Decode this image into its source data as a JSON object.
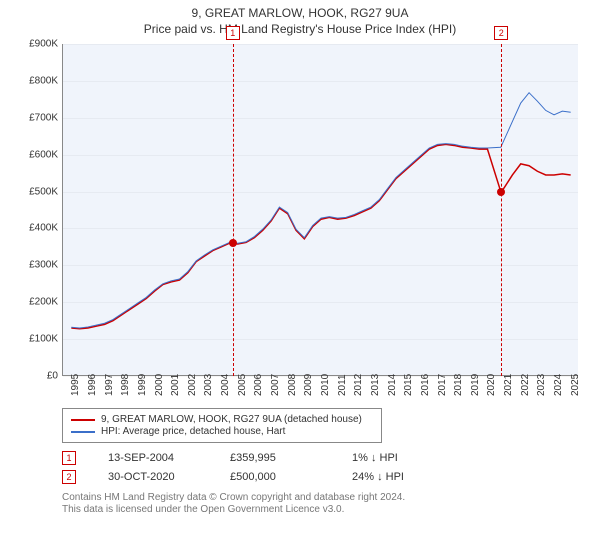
{
  "title": "9, GREAT MARLOW, HOOK, RG27 9UA",
  "subtitle": "Price paid vs. HM Land Registry's House Price Index (HPI)",
  "chart": {
    "type": "line",
    "plot_bg": "#f0f4fb",
    "ylim": [
      0,
      900000
    ],
    "ytick_step": 100000,
    "y_labels": [
      "£0",
      "£100K",
      "£200K",
      "£300K",
      "£400K",
      "£500K",
      "£600K",
      "£700K",
      "£800K",
      "£900K"
    ],
    "xlim": [
      1994.5,
      2025.5
    ],
    "x_labels": [
      "1995",
      "1996",
      "1997",
      "1998",
      "1999",
      "2000",
      "2001",
      "2002",
      "2003",
      "2004",
      "2005",
      "2006",
      "2007",
      "2008",
      "2009",
      "2010",
      "2011",
      "2012",
      "2013",
      "2014",
      "2015",
      "2016",
      "2017",
      "2018",
      "2019",
      "2020",
      "2021",
      "2022",
      "2023",
      "2024",
      "2025"
    ],
    "series": [
      {
        "name": "9, GREAT MARLOW, HOOK, RG27 9UA (detached house)",
        "color": "#cc0000",
        "line_width": 1.5,
        "data": [
          [
            1995,
            130000
          ],
          [
            1995.5,
            128000
          ],
          [
            1996,
            130000
          ],
          [
            1996.5,
            135000
          ],
          [
            1997,
            140000
          ],
          [
            1997.5,
            150000
          ],
          [
            1998,
            165000
          ],
          [
            1998.5,
            180000
          ],
          [
            1999,
            195000
          ],
          [
            1999.5,
            210000
          ],
          [
            2000,
            230000
          ],
          [
            2000.5,
            248000
          ],
          [
            2001,
            255000
          ],
          [
            2001.5,
            260000
          ],
          [
            2002,
            280000
          ],
          [
            2002.5,
            310000
          ],
          [
            2003,
            325000
          ],
          [
            2003.5,
            340000
          ],
          [
            2004,
            350000
          ],
          [
            2004.5,
            360000
          ],
          [
            2005,
            358000
          ],
          [
            2005.5,
            362000
          ],
          [
            2006,
            375000
          ],
          [
            2006.5,
            395000
          ],
          [
            2007,
            420000
          ],
          [
            2007.5,
            455000
          ],
          [
            2008,
            440000
          ],
          [
            2008.5,
            395000
          ],
          [
            2009,
            372000
          ],
          [
            2009.5,
            405000
          ],
          [
            2010,
            425000
          ],
          [
            2010.5,
            430000
          ],
          [
            2011,
            425000
          ],
          [
            2011.5,
            428000
          ],
          [
            2012,
            435000
          ],
          [
            2012.5,
            445000
          ],
          [
            2013,
            455000
          ],
          [
            2013.5,
            475000
          ],
          [
            2014,
            505000
          ],
          [
            2014.5,
            535000
          ],
          [
            2015,
            555000
          ],
          [
            2015.5,
            575000
          ],
          [
            2016,
            595000
          ],
          [
            2016.5,
            615000
          ],
          [
            2017,
            625000
          ],
          [
            2017.5,
            628000
          ],
          [
            2018,
            625000
          ],
          [
            2018.5,
            620000
          ],
          [
            2019,
            618000
          ],
          [
            2019.5,
            615000
          ],
          [
            2020,
            615000
          ],
          [
            2020.8,
            500000
          ],
          [
            2021,
            510000
          ],
          [
            2021.5,
            545000
          ],
          [
            2022,
            575000
          ],
          [
            2022.5,
            570000
          ],
          [
            2023,
            555000
          ],
          [
            2023.5,
            545000
          ],
          [
            2024,
            545000
          ],
          [
            2024.5,
            548000
          ],
          [
            2025,
            545000
          ]
        ]
      },
      {
        "name": "HPI: Average price, detached house, Hart",
        "color": "#3b6fc9",
        "line_width": 1,
        "data": [
          [
            1995,
            132000
          ],
          [
            1995.5,
            130000
          ],
          [
            1996,
            133000
          ],
          [
            1996.5,
            138000
          ],
          [
            1997,
            143000
          ],
          [
            1997.5,
            153000
          ],
          [
            1998,
            168000
          ],
          [
            1998.5,
            183000
          ],
          [
            1999,
            198000
          ],
          [
            1999.5,
            213000
          ],
          [
            2000,
            233000
          ],
          [
            2000.5,
            250000
          ],
          [
            2001,
            258000
          ],
          [
            2001.5,
            263000
          ],
          [
            2002,
            283000
          ],
          [
            2002.5,
            312000
          ],
          [
            2003,
            328000
          ],
          [
            2003.5,
            342000
          ],
          [
            2004,
            352000
          ],
          [
            2004.5,
            362000
          ],
          [
            2005,
            360000
          ],
          [
            2005.5,
            364000
          ],
          [
            2006,
            378000
          ],
          [
            2006.5,
            398000
          ],
          [
            2007,
            423000
          ],
          [
            2007.5,
            458000
          ],
          [
            2008,
            443000
          ],
          [
            2008.5,
            398000
          ],
          [
            2009,
            375000
          ],
          [
            2009.5,
            408000
          ],
          [
            2010,
            428000
          ],
          [
            2010.5,
            432000
          ],
          [
            2011,
            428000
          ],
          [
            2011.5,
            430000
          ],
          [
            2012,
            438000
          ],
          [
            2012.5,
            448000
          ],
          [
            2013,
            458000
          ],
          [
            2013.5,
            478000
          ],
          [
            2014,
            508000
          ],
          [
            2014.5,
            538000
          ],
          [
            2015,
            558000
          ],
          [
            2015.5,
            578000
          ],
          [
            2016,
            598000
          ],
          [
            2016.5,
            618000
          ],
          [
            2017,
            628000
          ],
          [
            2017.5,
            630000
          ],
          [
            2018,
            628000
          ],
          [
            2018.5,
            623000
          ],
          [
            2019,
            620000
          ],
          [
            2019.5,
            618000
          ],
          [
            2020,
            618000
          ],
          [
            2020.8,
            620000
          ],
          [
            2021,
            640000
          ],
          [
            2021.5,
            690000
          ],
          [
            2022,
            740000
          ],
          [
            2022.5,
            768000
          ],
          [
            2023,
            745000
          ],
          [
            2023.5,
            720000
          ],
          [
            2024,
            708000
          ],
          [
            2024.5,
            718000
          ],
          [
            2025,
            715000
          ]
        ]
      }
    ],
    "markers": [
      {
        "id": "1",
        "x": 2004.7,
        "y": 359995,
        "color": "#cc0000"
      },
      {
        "id": "2",
        "x": 2020.83,
        "y": 500000,
        "color": "#cc0000"
      }
    ]
  },
  "legend": {
    "items": [
      {
        "color": "#cc0000",
        "label": "9, GREAT MARLOW, HOOK, RG27 9UA (detached house)"
      },
      {
        "color": "#3b6fc9",
        "label": "HPI: Average price, detached house, Hart"
      }
    ]
  },
  "events": [
    {
      "id": "1",
      "color": "#cc0000",
      "date": "13-SEP-2004",
      "price": "£359,995",
      "delta": "1% ↓ HPI"
    },
    {
      "id": "2",
      "color": "#cc0000",
      "date": "30-OCT-2020",
      "price": "£500,000",
      "delta": "24% ↓ HPI"
    }
  ],
  "footer": {
    "line1": "Contains HM Land Registry data © Crown copyright and database right 2024.",
    "line2": "This data is licensed under the Open Government Licence v3.0."
  }
}
